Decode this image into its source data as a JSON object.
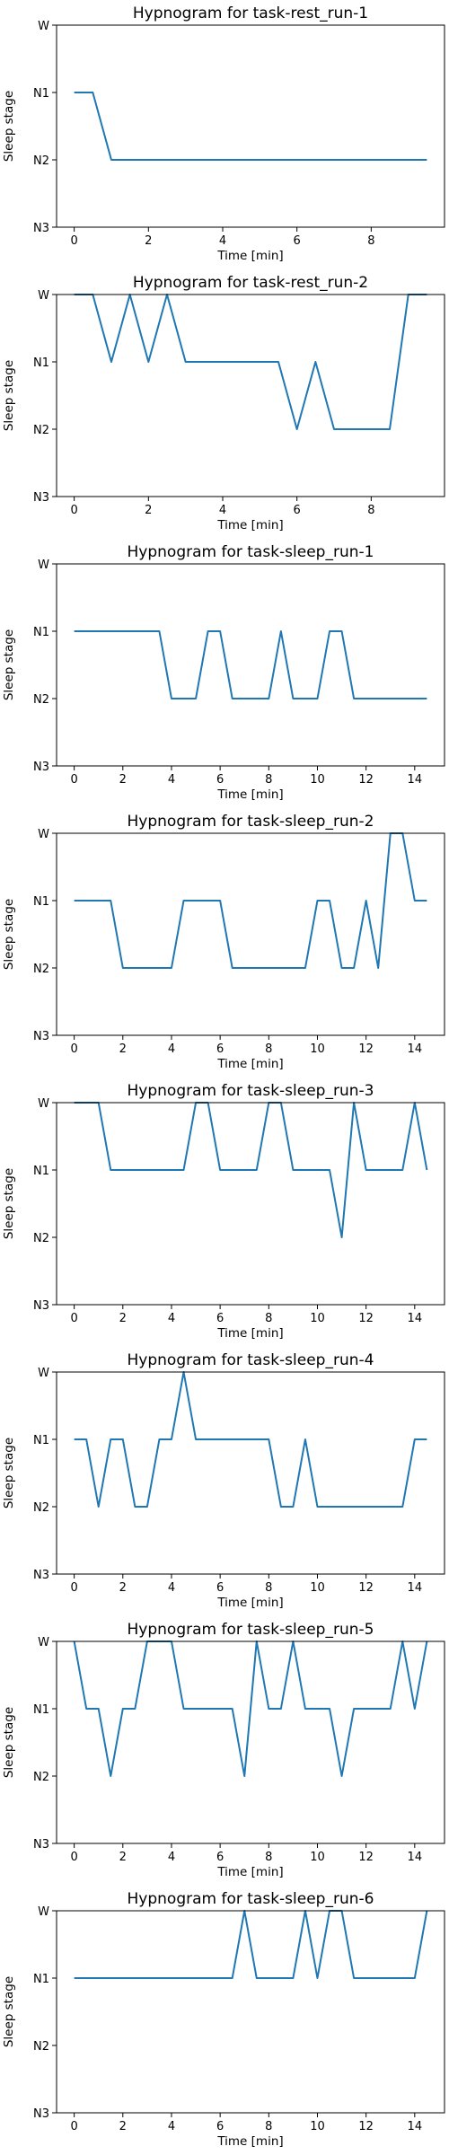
{
  "colors": {
    "series": "#1f77b4"
  },
  "chart_data": [
    {
      "type": "line",
      "title": "Hypnogram for task-rest_run-1",
      "xlabel": "Time [min]",
      "ylabel": "Sleep stage",
      "xlim": [
        -0.475,
        9.975
      ],
      "xticks": [
        0,
        2,
        4,
        6,
        8
      ],
      "yticks": [
        "W",
        "N1",
        "N2",
        "N3"
      ],
      "x": [
        0,
        0.5,
        1,
        1.5,
        2,
        2.5,
        3,
        3.5,
        4,
        4.5,
        5,
        5.5,
        6,
        6.5,
        7,
        7.5,
        8,
        8.5,
        9,
        9.5
      ],
      "series": [
        {
          "values": [
            "N1",
            "N1",
            "N2",
            "N2",
            "N2",
            "N2",
            "N2",
            "N2",
            "N2",
            "N2",
            "N2",
            "N2",
            "N2",
            "N2",
            "N2",
            "N2",
            "N2",
            "N2",
            "N2",
            "N2"
          ]
        }
      ]
    },
    {
      "type": "line",
      "title": "Hypnogram for task-rest_run-2",
      "xlabel": "Time [min]",
      "ylabel": "Sleep stage",
      "xlim": [
        -0.475,
        9.975
      ],
      "xticks": [
        0,
        2,
        4,
        6,
        8
      ],
      "yticks": [
        "W",
        "N1",
        "N2",
        "N3"
      ],
      "x": [
        0,
        0.5,
        1,
        1.5,
        2,
        2.5,
        3,
        3.5,
        4,
        4.5,
        5,
        5.5,
        6,
        6.5,
        7,
        7.5,
        8,
        8.5,
        9,
        9.5
      ],
      "series": [
        {
          "values": [
            "W",
            "W",
            "N1",
            "W",
            "N1",
            "W",
            "N1",
            "N1",
            "N1",
            "N1",
            "N1",
            "N1",
            "N2",
            "N1",
            "N2",
            "N2",
            "N2",
            "N2",
            "W",
            "W"
          ]
        }
      ]
    },
    {
      "type": "line",
      "title": "Hypnogram for task-sleep_run-1",
      "xlabel": "Time [min]",
      "ylabel": "Sleep stage",
      "xlim": [
        -0.725,
        15.225
      ],
      "xticks": [
        0,
        2,
        4,
        6,
        8,
        10,
        12,
        14
      ],
      "yticks": [
        "W",
        "N1",
        "N2",
        "N3"
      ],
      "x": [
        0,
        0.5,
        1,
        1.5,
        2,
        2.5,
        3,
        3.5,
        4,
        4.5,
        5,
        5.5,
        6,
        6.5,
        7,
        7.5,
        8,
        8.5,
        9,
        9.5,
        10,
        10.5,
        11,
        11.5,
        12,
        12.5,
        13,
        13.5,
        14,
        14.5
      ],
      "series": [
        {
          "values": [
            "N1",
            "N1",
            "N1",
            "N1",
            "N1",
            "N1",
            "N1",
            "N1",
            "N2",
            "N2",
            "N2",
            "N1",
            "N1",
            "N2",
            "N2",
            "N2",
            "N2",
            "N1",
            "N2",
            "N2",
            "N2",
            "N1",
            "N1",
            "N2",
            "N2",
            "N2",
            "N2",
            "N2",
            "N2",
            "N2"
          ]
        }
      ]
    },
    {
      "type": "line",
      "title": "Hypnogram for task-sleep_run-2",
      "xlabel": "Time [min]",
      "ylabel": "Sleep stage",
      "xlim": [
        -0.725,
        15.225
      ],
      "xticks": [
        0,
        2,
        4,
        6,
        8,
        10,
        12,
        14
      ],
      "yticks": [
        "W",
        "N1",
        "N2",
        "N3"
      ],
      "x": [
        0,
        0.5,
        1,
        1.5,
        2,
        2.5,
        3,
        3.5,
        4,
        4.5,
        5,
        5.5,
        6,
        6.5,
        7,
        7.5,
        8,
        8.5,
        9,
        9.5,
        10,
        10.5,
        11,
        11.5,
        12,
        12.5,
        13,
        13.5,
        14,
        14.5
      ],
      "series": [
        {
          "values": [
            "N1",
            "N1",
            "N1",
            "N1",
            "N2",
            "N2",
            "N2",
            "N2",
            "N2",
            "N1",
            "N1",
            "N1",
            "N1",
            "N2",
            "N2",
            "N2",
            "N2",
            "N2",
            "N2",
            "N2",
            "N1",
            "N1",
            "N2",
            "N2",
            "N1",
            "N2",
            "W",
            "W",
            "N1",
            "N1"
          ]
        }
      ]
    },
    {
      "type": "line",
      "title": "Hypnogram for task-sleep_run-3",
      "xlabel": "Time [min]",
      "ylabel": "Sleep stage",
      "xlim": [
        -0.725,
        15.225
      ],
      "xticks": [
        0,
        2,
        4,
        6,
        8,
        10,
        12,
        14
      ],
      "yticks": [
        "W",
        "N1",
        "N2",
        "N3"
      ],
      "x": [
        0,
        0.5,
        1,
        1.5,
        2,
        2.5,
        3,
        3.5,
        4,
        4.5,
        5,
        5.5,
        6,
        6.5,
        7,
        7.5,
        8,
        8.5,
        9,
        9.5,
        10,
        10.5,
        11,
        11.5,
        12,
        12.5,
        13,
        13.5,
        14,
        14.5
      ],
      "series": [
        {
          "values": [
            "W",
            "W",
            "W",
            "N1",
            "N1",
            "N1",
            "N1",
            "N1",
            "N1",
            "N1",
            "W",
            "W",
            "N1",
            "N1",
            "N1",
            "N1",
            "W",
            "W",
            "N1",
            "N1",
            "N1",
            "N1",
            "N2",
            "W",
            "N1",
            "N1",
            "N1",
            "N1",
            "W",
            "N1"
          ]
        }
      ]
    },
    {
      "type": "line",
      "title": "Hypnogram for task-sleep_run-4",
      "xlabel": "Time [min]",
      "ylabel": "Sleep stage",
      "xlim": [
        -0.725,
        15.225
      ],
      "xticks": [
        0,
        2,
        4,
        6,
        8,
        10,
        12,
        14
      ],
      "yticks": [
        "W",
        "N1",
        "N2",
        "N3"
      ],
      "x": [
        0,
        0.5,
        1,
        1.5,
        2,
        2.5,
        3,
        3.5,
        4,
        4.5,
        5,
        5.5,
        6,
        6.5,
        7,
        7.5,
        8,
        8.5,
        9,
        9.5,
        10,
        10.5,
        11,
        11.5,
        12,
        12.5,
        13,
        13.5,
        14,
        14.5
      ],
      "series": [
        {
          "values": [
            "N1",
            "N1",
            "N2",
            "N1",
            "N1",
            "N2",
            "N2",
            "N1",
            "N1",
            "W",
            "N1",
            "N1",
            "N1",
            "N1",
            "N1",
            "N1",
            "N1",
            "N2",
            "N2",
            "N1",
            "N2",
            "N2",
            "N2",
            "N2",
            "N2",
            "N2",
            "N2",
            "N2",
            "N1",
            "N1"
          ]
        }
      ]
    },
    {
      "type": "line",
      "title": "Hypnogram for task-sleep_run-5",
      "xlabel": "Time [min]",
      "ylabel": "Sleep stage",
      "xlim": [
        -0.725,
        15.225
      ],
      "xticks": [
        0,
        2,
        4,
        6,
        8,
        10,
        12,
        14
      ],
      "yticks": [
        "W",
        "N1",
        "N2",
        "N3"
      ],
      "x": [
        0,
        0.5,
        1,
        1.5,
        2,
        2.5,
        3,
        3.5,
        4,
        4.5,
        5,
        5.5,
        6,
        6.5,
        7,
        7.5,
        8,
        8.5,
        9,
        9.5,
        10,
        10.5,
        11,
        11.5,
        12,
        12.5,
        13,
        13.5,
        14,
        14.5
      ],
      "series": [
        {
          "values": [
            "W",
            "N1",
            "N1",
            "N2",
            "N1",
            "N1",
            "W",
            "W",
            "W",
            "N1",
            "N1",
            "N1",
            "N1",
            "N1",
            "N2",
            "W",
            "N1",
            "N1",
            "W",
            "N1",
            "N1",
            "N1",
            "N2",
            "N1",
            "N1",
            "N1",
            "N1",
            "W",
            "N1",
            "W"
          ]
        }
      ]
    },
    {
      "type": "line",
      "title": "Hypnogram for task-sleep_run-6",
      "xlabel": "Time [min]",
      "ylabel": "Sleep stage",
      "xlim": [
        -0.725,
        15.225
      ],
      "xticks": [
        0,
        2,
        4,
        6,
        8,
        10,
        12,
        14
      ],
      "yticks": [
        "W",
        "N1",
        "N2",
        "N3"
      ],
      "x": [
        0,
        0.5,
        1,
        1.5,
        2,
        2.5,
        3,
        3.5,
        4,
        4.5,
        5,
        5.5,
        6,
        6.5,
        7,
        7.5,
        8,
        8.5,
        9,
        9.5,
        10,
        10.5,
        11,
        11.5,
        12,
        12.5,
        13,
        13.5,
        14,
        14.5
      ],
      "series": [
        {
          "values": [
            "N1",
            "N1",
            "N1",
            "N1",
            "N1",
            "N1",
            "N1",
            "N1",
            "N1",
            "N1",
            "N1",
            "N1",
            "N1",
            "N1",
            "W",
            "N1",
            "N1",
            "N1",
            "N1",
            "W",
            "N1",
            "W",
            "W",
            "N1",
            "N1",
            "N1",
            "N1",
            "N1",
            "N1",
            "W"
          ]
        }
      ]
    }
  ]
}
